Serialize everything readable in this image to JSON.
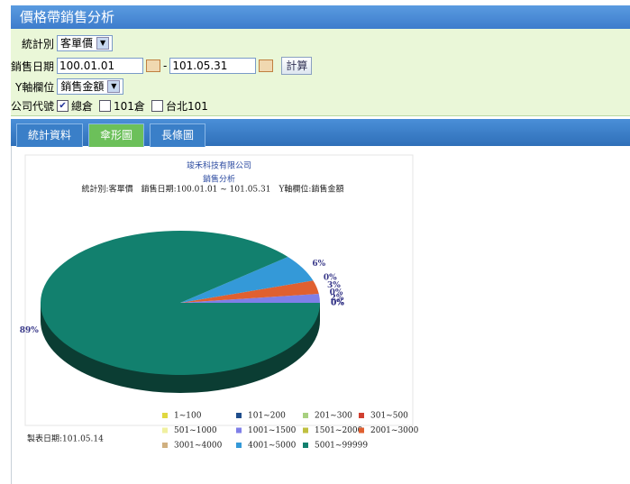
{
  "header": {
    "title": "價格帶銷售分析"
  },
  "form": {
    "stat_label": "統計別",
    "stat_value": "客單價",
    "date_label": "銷售日期",
    "date_from": "100.01.01",
    "date_sep": "-",
    "date_to": "101.05.31",
    "button": "計算",
    "y_label": "Y軸欄位",
    "y_value": "銷售金額",
    "company_label": "公司代號",
    "companies": [
      {
        "label": "總倉",
        "checked": true
      },
      {
        "label": "101倉",
        "checked": false
      },
      {
        "label": "台北101",
        "checked": false
      }
    ]
  },
  "tabs": [
    {
      "label": "統計資料",
      "active": false
    },
    {
      "label": "傘形圖",
      "active": true
    },
    {
      "label": "長條圖",
      "active": false
    }
  ],
  "chart_data": {
    "type": "pie",
    "title": "竣禾科技有限公司",
    "subtitle": "銷售分析",
    "info": "統計別:客單價　銷售日期:100.01.01 ~ 101.05.31　Y軸欄位:銷售金額",
    "footer": "製表日期:101.05.14",
    "categories": [
      "1~100",
      "101~200",
      "201~300",
      "301~500",
      "501~1000",
      "1001~1500",
      "1501~2000",
      "2001~3000",
      "3001~4000",
      "4001~5000",
      "5001~99999"
    ],
    "values": [
      0,
      0,
      0,
      0,
      0,
      2,
      0,
      3,
      0,
      6,
      89
    ],
    "value_labels": [
      "0%",
      "0%",
      "0%",
      "0%",
      "0%",
      "2%",
      "0%",
      "3%",
      "0%",
      "6%",
      "89%"
    ],
    "colors": [
      "#e0d840",
      "#1f4e8c",
      "#a8d080",
      "#d04030",
      "#f0f0a0",
      "#7f7fe8",
      "#c0c040",
      "#e06030",
      "#d0b080",
      "#3499d8",
      "#12806e"
    ]
  }
}
